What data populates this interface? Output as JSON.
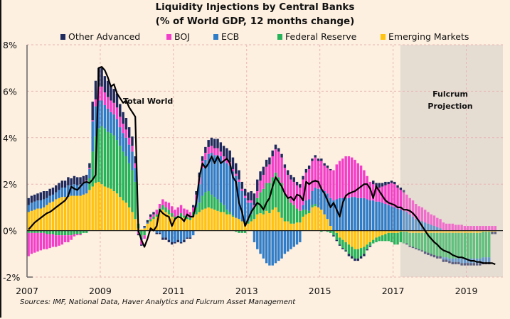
{
  "chart_data": {
    "type": "bar",
    "subtype": "stacked-bar-with-line",
    "title": "Liquidity Injections by Central Banks",
    "subtitle": "(% of World GDP, 12 months change)",
    "xlabel": "",
    "ylabel": "",
    "ylim": [
      -2,
      8
    ],
    "xlim": [
      2007.0,
      2020.0
    ],
    "yticks": [
      -2,
      0,
      2,
      4,
      6,
      8
    ],
    "ytick_labels": [
      "-2%",
      "0%",
      "2%",
      "4%",
      "6%",
      "8%"
    ],
    "xticks": [
      2007,
      2009,
      2011,
      2013,
      2015,
      2017,
      2019
    ],
    "xtick_labels": [
      "2007",
      "2009",
      "2011",
      "2013",
      "2015",
      "2017",
      "2019"
    ],
    "grid": true,
    "legend_position": "top",
    "frequency": "monthly",
    "start": "2007-01",
    "series_order": [
      "Emerging Markets",
      "Federal Reserve",
      "ECB",
      "BOJ",
      "Other Advanced"
    ],
    "colors": {
      "Other Advanced": "#1f2a5e",
      "BOJ": "#f23ec9",
      "ECB": "#2f7cc8",
      "Federal Reserve": "#26b35a",
      "Emerging Markets": "#ffc20e",
      "Total World": "#000000",
      "projection_shade": "#e6ddd2"
    },
    "annotations": [
      {
        "text": "Total World",
        "x": 2009.6,
        "y": 5.6
      },
      {
        "text": "Fulcrum\nProjection",
        "x": 2018.4,
        "y": 5.6
      }
    ],
    "projection_start": 2017.2,
    "series": [
      {
        "name": "Emerging Markets",
        "values": [
          0.8,
          0.85,
          0.9,
          0.95,
          0.95,
          1.0,
          1.1,
          1.2,
          1.25,
          1.35,
          1.4,
          1.45,
          1.45,
          1.45,
          1.5,
          1.5,
          1.5,
          1.5,
          1.55,
          1.6,
          1.75,
          1.9,
          2.05,
          2.1,
          2.0,
          1.9,
          1.85,
          1.8,
          1.7,
          1.6,
          1.45,
          1.3,
          1.2,
          1.0,
          0.8,
          0.5,
          0.1,
          0.05,
          0.1,
          0.3,
          0.4,
          0.5,
          0.6,
          0.8,
          0.9,
          0.8,
          0.7,
          0.6,
          0.5,
          0.55,
          0.6,
          0.55,
          0.5,
          0.45,
          0.6,
          0.7,
          0.8,
          0.9,
          0.95,
          1.0,
          0.95,
          0.9,
          0.85,
          0.8,
          0.8,
          0.7,
          0.7,
          0.6,
          0.55,
          0.5,
          0.4,
          0.3,
          0.3,
          0.4,
          0.5,
          0.7,
          0.75,
          0.7,
          0.85,
          0.75,
          0.9,
          1.0,
          0.8,
          0.55,
          0.4,
          0.4,
          0.3,
          0.3,
          0.35,
          0.35,
          0.6,
          0.7,
          0.75,
          1.0,
          1.05,
          1.0,
          0.9,
          0.7,
          0.5,
          0.2,
          0.0,
          -0.1,
          -0.3,
          -0.4,
          -0.5,
          -0.6,
          -0.7,
          -0.8,
          -0.8,
          -0.75,
          -0.7,
          -0.6,
          -0.5,
          -0.4,
          -0.3,
          -0.25,
          -0.2,
          -0.15,
          -0.1,
          -0.1,
          -0.1,
          -0.1,
          -0.05,
          -0.05,
          -0.05,
          -0.1,
          -0.1,
          -0.1,
          -0.1,
          -0.1,
          -0.1,
          -0.1,
          -0.1,
          -0.1,
          -0.1,
          -0.1,
          -0.1,
          -0.1,
          -0.1,
          -0.1,
          -0.1,
          -0.1,
          -0.1,
          -0.1,
          -0.1,
          -0.1,
          -0.1,
          -0.1,
          -0.1,
          -0.05,
          -0.05,
          -0.05,
          -0.05,
          -0.05
        ]
      },
      {
        "name": "Federal Reserve",
        "values": [
          -0.1,
          -0.1,
          -0.1,
          -0.1,
          -0.1,
          -0.1,
          -0.15,
          -0.15,
          -0.15,
          -0.2,
          -0.2,
          -0.2,
          -0.2,
          -0.2,
          -0.2,
          -0.15,
          -0.15,
          -0.15,
          -0.1,
          -0.1,
          0.5,
          1.5,
          2.0,
          2.3,
          2.5,
          2.5,
          2.4,
          2.4,
          2.4,
          2.3,
          2.2,
          2.1,
          2.0,
          1.9,
          1.8,
          1.6,
          0.2,
          -0.3,
          -0.2,
          0.0,
          0.1,
          0.1,
          0.1,
          0.15,
          0.2,
          0.2,
          0.2,
          0.15,
          0.1,
          0.1,
          0.15,
          0.1,
          0.1,
          0.1,
          0.2,
          0.3,
          0.4,
          0.6,
          0.7,
          0.7,
          0.6,
          0.55,
          0.5,
          0.4,
          0.3,
          0.2,
          0.1,
          0.05,
          -0.05,
          -0.1,
          -0.1,
          -0.1,
          0.1,
          0.3,
          0.5,
          0.7,
          0.9,
          1.1,
          1.2,
          1.3,
          1.4,
          1.5,
          1.5,
          1.5,
          1.2,
          1.0,
          0.9,
          0.8,
          0.6,
          0.5,
          0.3,
          0.2,
          0.1,
          0.1,
          0.1,
          0.0,
          -0.05,
          0.0,
          -0.05,
          -0.1,
          -0.2,
          -0.3,
          -0.3,
          -0.35,
          -0.35,
          -0.4,
          -0.4,
          -0.4,
          -0.4,
          -0.35,
          -0.3,
          -0.2,
          -0.15,
          -0.15,
          -0.2,
          -0.2,
          -0.25,
          -0.3,
          -0.35,
          -0.4,
          -0.5,
          -0.5,
          -0.45,
          -0.5,
          -0.5,
          -0.55,
          -0.6,
          -0.65,
          -0.7,
          -0.75,
          -0.8,
          -0.85,
          -0.9,
          -0.95,
          -1.0,
          -1.0,
          -1.05,
          -1.05,
          -1.1,
          -1.1,
          -1.1,
          -1.1,
          -1.1,
          -1.1,
          -1.1,
          -1.1,
          -1.1,
          -1.1,
          -1.1,
          -1.1,
          -1.1,
          -1.1
        ]
      },
      {
        "name": "ECB",
        "values": [
          0.3,
          0.35,
          0.35,
          0.35,
          0.35,
          0.35,
          0.3,
          0.3,
          0.3,
          0.3,
          0.35,
          0.4,
          0.4,
          0.5,
          0.45,
          0.5,
          0.45,
          0.5,
          0.5,
          0.5,
          0.4,
          1.3,
          1.3,
          1.2,
          1.1,
          1.0,
          1.0,
          0.9,
          0.9,
          0.9,
          0.8,
          0.8,
          0.8,
          0.8,
          0.8,
          0.6,
          -0.05,
          -0.1,
          0.05,
          0.05,
          0.0,
          0.0,
          -0.1,
          -0.1,
          -0.3,
          -0.3,
          -0.4,
          -0.5,
          -0.5,
          -0.4,
          -0.5,
          -0.4,
          -0.3,
          -0.3,
          -0.2,
          0.3,
          0.8,
          1.2,
          1.4,
          1.6,
          1.8,
          1.8,
          1.9,
          2.0,
          1.9,
          2.0,
          2.0,
          1.9,
          1.8,
          1.6,
          1.3,
          1.1,
          0.8,
          0.5,
          -0.5,
          -0.8,
          -1.0,
          -1.2,
          -1.4,
          -1.5,
          -1.5,
          -1.4,
          -1.3,
          -1.2,
          -1.0,
          -0.9,
          -0.8,
          -0.7,
          -0.6,
          -0.5,
          0.2,
          0.4,
          0.5,
          0.6,
          0.7,
          0.8,
          0.9,
          1.0,
          1.1,
          1.2,
          1.3,
          1.35,
          1.4,
          1.4,
          1.4,
          1.4,
          1.45,
          1.45,
          1.4,
          1.4,
          1.4,
          1.35,
          1.3,
          1.3,
          1.25,
          1.25,
          1.2,
          1.15,
          1.1,
          1.05,
          1.0,
          0.95,
          0.9,
          0.85,
          0.8,
          0.7,
          0.6,
          0.5,
          0.45,
          0.4,
          0.35,
          0.3,
          0.25,
          0.2,
          0.15,
          0.1,
          -0.1,
          -0.1,
          -0.1,
          -0.15,
          -0.15,
          -0.15,
          -0.2,
          -0.2,
          -0.2,
          -0.2,
          -0.2,
          -0.2,
          -0.2,
          -0.2,
          -0.2,
          -0.2
        ]
      },
      {
        "name": "BOJ",
        "values": [
          -1.0,
          -0.9,
          -0.85,
          -0.8,
          -0.75,
          -0.7,
          -0.65,
          -0.6,
          -0.55,
          -0.5,
          -0.45,
          -0.4,
          -0.3,
          -0.3,
          -0.2,
          -0.1,
          -0.05,
          -0.05,
          0.0,
          0.05,
          0.05,
          0.05,
          0.3,
          0.6,
          0.6,
          0.55,
          0.5,
          0.5,
          0.5,
          0.5,
          0.45,
          0.4,
          0.35,
          0.3,
          0.25,
          0.2,
          -0.1,
          -0.2,
          -0.15,
          0.0,
          0.1,
          0.1,
          0.2,
          0.2,
          0.25,
          0.25,
          0.3,
          0.3,
          0.3,
          0.35,
          0.35,
          0.3,
          0.3,
          0.25,
          0.2,
          0.25,
          0.3,
          0.3,
          0.3,
          0.3,
          0.3,
          0.3,
          0.3,
          0.2,
          0.2,
          0.15,
          0.15,
          0.1,
          0.1,
          0.1,
          0.1,
          0.1,
          0.1,
          0.1,
          0.1,
          0.3,
          0.5,
          0.6,
          0.7,
          0.8,
          0.9,
          1.0,
          1.1,
          1.1,
          1.1,
          1.0,
          1.0,
          1.0,
          1.0,
          1.0,
          1.1,
          1.2,
          1.3,
          1.3,
          1.3,
          1.2,
          1.2,
          1.1,
          1.1,
          1.2,
          1.3,
          1.5,
          1.6,
          1.7,
          1.8,
          1.8,
          1.7,
          1.6,
          1.5,
          1.4,
          1.2,
          1.0,
          0.8,
          0.7,
          0.6,
          0.6,
          0.7,
          0.8,
          0.9,
          1.0,
          1.0,
          0.9,
          0.85,
          0.8,
          0.75,
          0.7,
          0.7,
          0.65,
          0.6,
          0.6,
          0.55,
          0.5,
          0.45,
          0.45,
          0.4,
          0.4,
          0.35,
          0.3,
          0.3,
          0.3,
          0.25,
          0.25,
          0.25,
          0.2,
          0.2,
          0.2,
          0.2,
          0.2,
          0.2,
          0.2,
          0.2,
          0.2,
          0.2,
          0.2
        ]
      },
      {
        "name": "Other Advanced",
        "values": [
          0.3,
          0.3,
          0.3,
          0.3,
          0.35,
          0.35,
          0.3,
          0.3,
          0.3,
          0.3,
          0.3,
          0.3,
          0.3,
          0.35,
          0.3,
          0.35,
          0.35,
          0.3,
          0.3,
          0.25,
          0.2,
          0.8,
          0.8,
          0.8,
          0.8,
          0.7,
          0.7,
          0.65,
          0.6,
          0.6,
          0.55,
          0.5,
          0.5,
          0.45,
          0.4,
          0.3,
          -0.05,
          -0.05,
          0.05,
          0.1,
          0.1,
          0.1,
          -0.05,
          -0.05,
          -0.1,
          -0.1,
          -0.1,
          -0.1,
          -0.05,
          -0.1,
          -0.05,
          -0.1,
          -0.05,
          -0.05,
          0.1,
          0.15,
          0.2,
          0.2,
          0.25,
          0.3,
          0.35,
          0.4,
          0.4,
          0.4,
          0.45,
          0.5,
          0.5,
          0.5,
          0.45,
          0.4,
          0.3,
          0.3,
          0.35,
          0.4,
          0.5,
          0.5,
          0.4,
          0.35,
          0.3,
          0.3,
          0.25,
          0.2,
          0.15,
          0.15,
          0.15,
          0.2,
          0.2,
          0.2,
          0.15,
          0.15,
          0.15,
          0.15,
          0.15,
          0.1,
          0.1,
          0.1,
          0.1,
          0.1,
          0.1,
          0.05,
          -0.05,
          -0.05,
          -0.05,
          -0.05,
          -0.05,
          -0.1,
          -0.1,
          -0.1,
          -0.1,
          -0.1,
          -0.1,
          -0.05,
          -0.05,
          0.15,
          0.2,
          0.2,
          0.15,
          0.15,
          0.1,
          0.1,
          0.1,
          0.1,
          0.1,
          0.1,
          -0.05,
          -0.05,
          -0.05,
          -0.05,
          -0.05,
          -0.05,
          -0.1,
          -0.1,
          -0.1,
          -0.1,
          -0.1,
          -0.1,
          -0.1,
          -0.1,
          -0.1,
          -0.1,
          -0.1,
          -0.1,
          -0.1,
          -0.1,
          -0.1,
          -0.1,
          -0.1,
          -0.1,
          -0.1,
          -0.1,
          -0.1,
          -0.1,
          -0.1,
          -0.1
        ]
      }
    ],
    "total_world": [
      0.05,
      0.2,
      0.35,
      0.45,
      0.55,
      0.65,
      0.75,
      0.8,
      0.9,
      1.0,
      1.1,
      1.2,
      1.3,
      1.5,
      1.9,
      1.8,
      1.75,
      1.9,
      2.05,
      2.1,
      2.05,
      2.2,
      2.4,
      7.0,
      7.05,
      6.9,
      6.6,
      6.2,
      6.3,
      5.9,
      5.7,
      5.5,
      5.6,
      5.3,
      5.1,
      4.9,
      0.0,
      -0.4,
      -0.7,
      -0.35,
      0.1,
      0.0,
      0.2,
      0.9,
      0.75,
      0.65,
      0.6,
      0.2,
      0.5,
      0.6,
      0.55,
      0.4,
      0.7,
      0.6,
      0.6,
      1.2,
      2.3,
      2.9,
      2.7,
      2.9,
      3.2,
      2.9,
      3.2,
      2.9,
      3.0,
      3.1,
      2.9,
      2.3,
      2.1,
      1.2,
      0.8,
      0.2,
      0.5,
      0.8,
      1.0,
      1.2,
      1.1,
      0.9,
      1.2,
      1.4,
      1.9,
      2.3,
      2.1,
      1.9,
      1.6,
      1.4,
      1.45,
      1.3,
      1.55,
      1.5,
      1.3,
      2.1,
      2.0,
      2.1,
      2.15,
      2.1,
      1.8,
      1.6,
      1.3,
      1.0,
      1.2,
      0.9,
      0.6,
      1.2,
      1.5,
      1.6,
      1.65,
      1.7,
      1.8,
      1.9,
      2.0,
      2.0,
      1.8,
      1.4,
      1.9,
      1.7,
      1.5,
      1.3,
      1.2,
      1.15,
      1.1,
      1.0,
      1.0,
      0.9,
      0.9,
      0.85,
      0.75,
      0.6,
      0.4,
      0.2,
      0.0,
      -0.2,
      -0.35,
      -0.5,
      -0.6,
      -0.75,
      -0.85,
      -0.9,
      -0.95,
      -1.05,
      -1.1,
      -1.15,
      -1.15,
      -1.2,
      -1.25,
      -1.3,
      -1.3,
      -1.35,
      -1.35,
      -1.4,
      -1.4,
      -1.4,
      -1.4,
      -1.45
    ]
  },
  "header": {
    "title": "Liquidity Injections by Central Banks",
    "subtitle": "(% of World GDP, 12 months change)"
  },
  "legend": {
    "items": [
      {
        "label": "Other Advanced",
        "color": "#1f2a5e"
      },
      {
        "label": "BOJ",
        "color": "#f23ec9"
      },
      {
        "label": "ECB",
        "color": "#2f7cc8"
      },
      {
        "label": "Federal Reserve",
        "color": "#26b35a"
      },
      {
        "label": "Emerging Markets",
        "color": "#ffc20e"
      }
    ]
  },
  "annotations": {
    "total_world": "Total World",
    "projection_line1": "Fulcrum",
    "projection_line2": "Projection"
  },
  "footer": {
    "source": "Sources: IMF, National Data, Haver Analytics and Fulcrum Asset Management"
  }
}
